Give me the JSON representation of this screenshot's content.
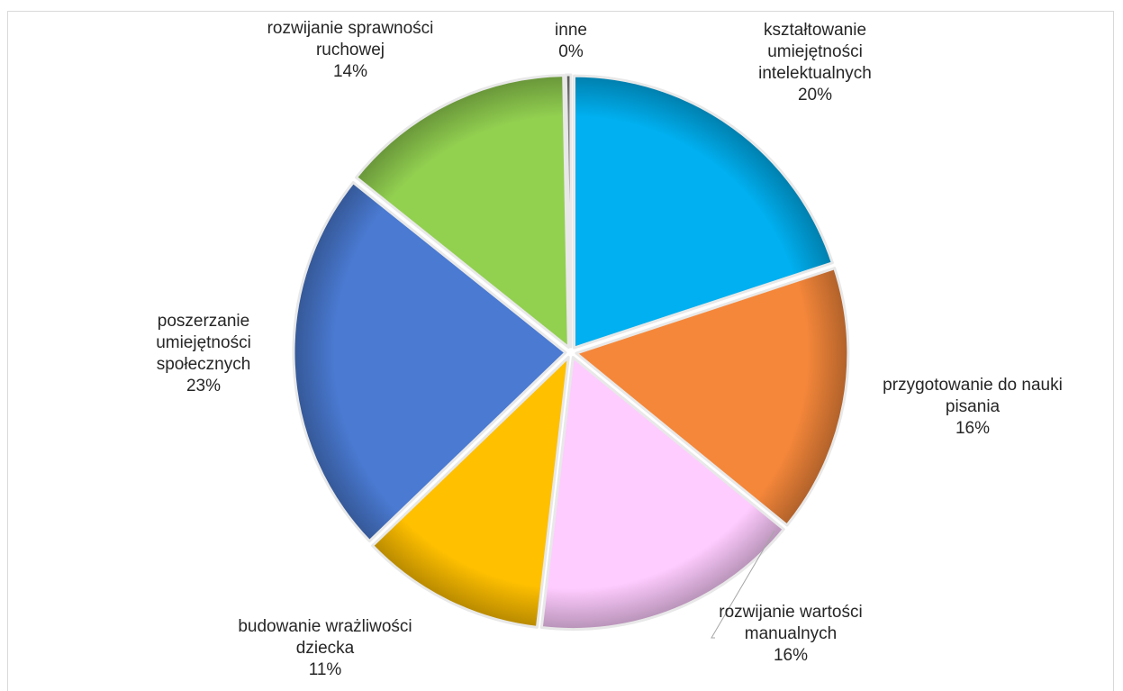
{
  "chart_data": {
    "type": "pie",
    "title": "",
    "slices": [
      {
        "label_lines": [
          "kształtowanie",
          "umiejętności",
          "intelektualnych"
        ],
        "percent_label": "20%",
        "value": 20,
        "color": "#00b0f0"
      },
      {
        "label_lines": [
          "przygotowanie do nauki",
          "pisania"
        ],
        "percent_label": "16%",
        "value": 16,
        "color": "#f5873a"
      },
      {
        "label_lines": [
          "rozwijanie wartości",
          "manualnych"
        ],
        "percent_label": "16%",
        "value": 16,
        "color": "#ffccff"
      },
      {
        "label_lines": [
          "budowanie wrażliwości",
          "dziecka"
        ],
        "percent_label": "11%",
        "value": 11,
        "color": "#ffc000"
      },
      {
        "label_lines": [
          "poszerzanie",
          "umiejętności",
          "społecznych"
        ],
        "percent_label": "23%",
        "value": 23,
        "color": "#4a7ad2"
      },
      {
        "label_lines": [
          "rozwijanie sprawności",
          "ruchowej"
        ],
        "percent_label": "14%",
        "value": 14,
        "color": "#92d050"
      },
      {
        "label_lines": [
          "inne"
        ],
        "percent_label": "0%",
        "value": 0.3,
        "color": "#7f7f7f"
      }
    ]
  }
}
